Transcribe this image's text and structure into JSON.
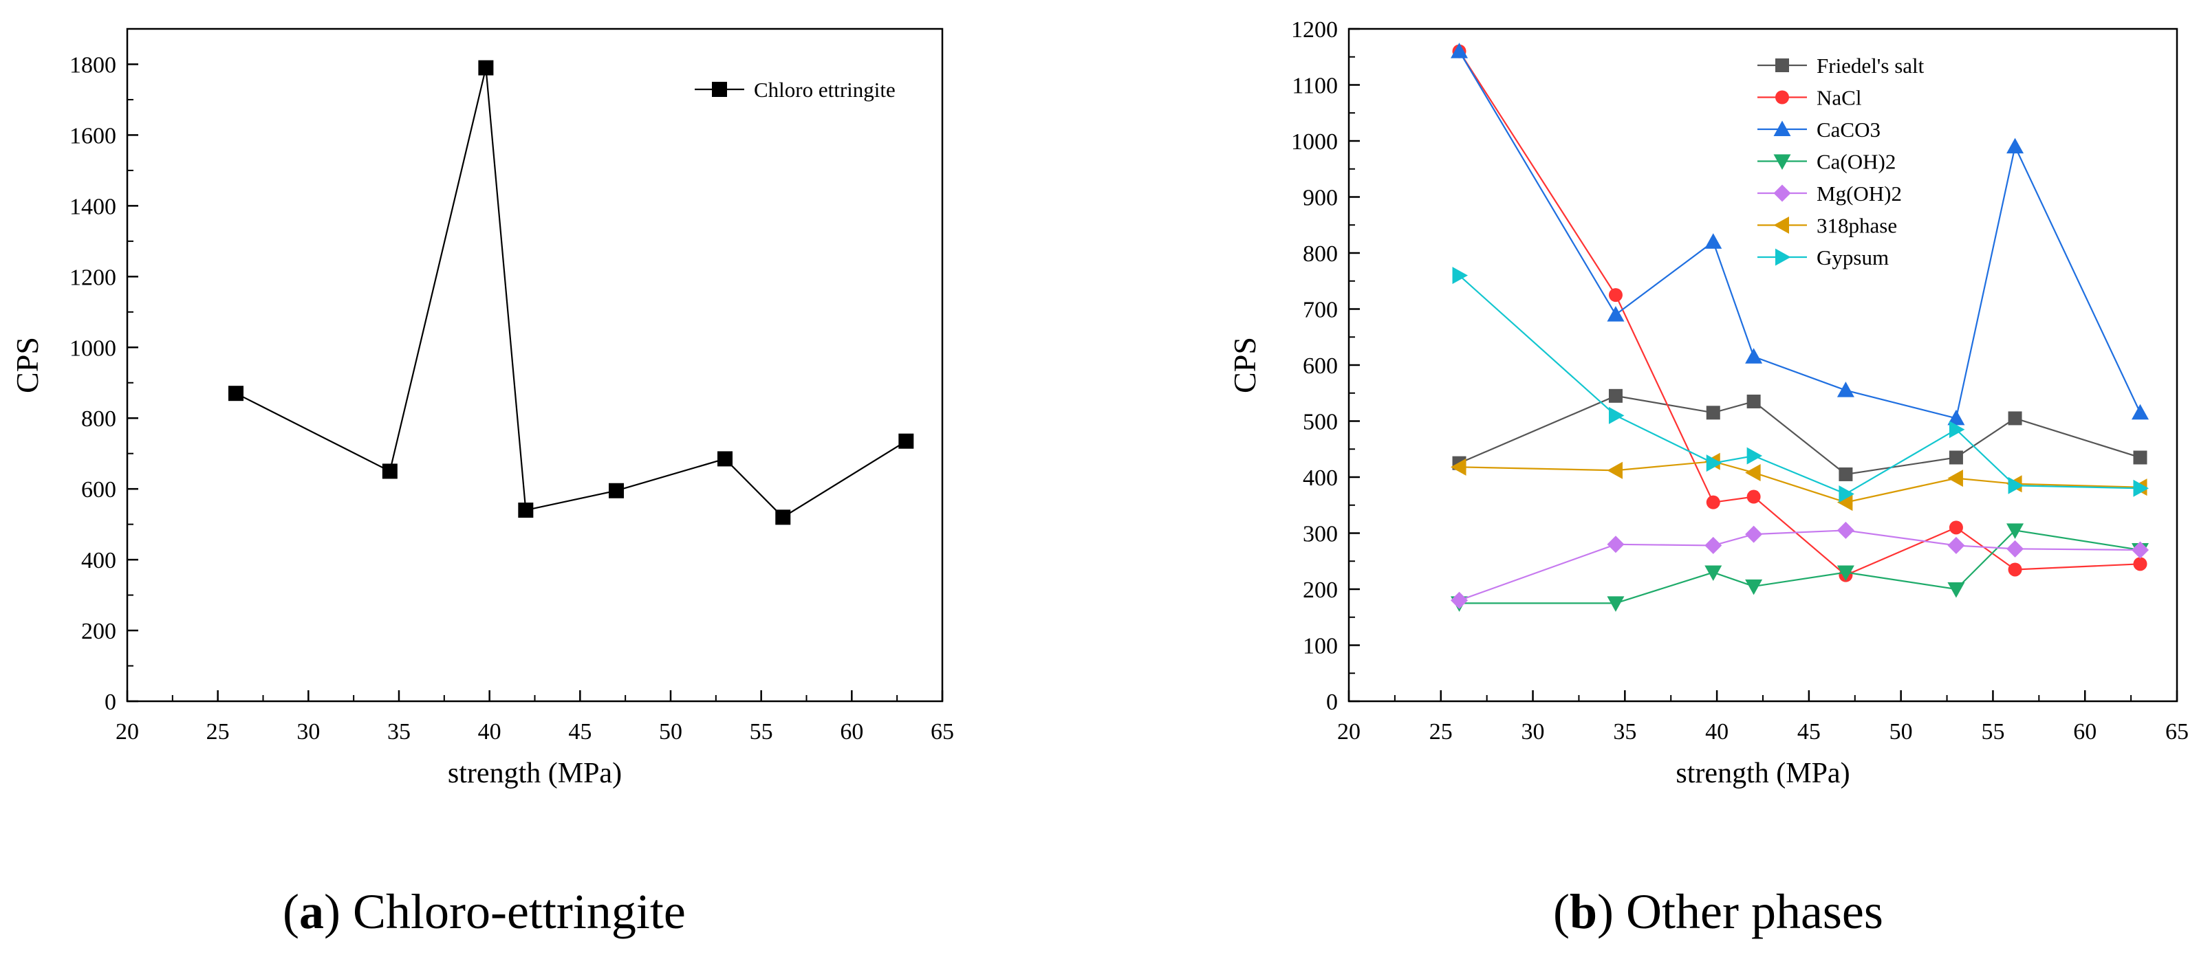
{
  "panels": [
    {
      "caption": {
        "letter": "a",
        "text": "Chloro-ettringite"
      },
      "chart_data": {
        "type": "line",
        "title": "",
        "xlabel": "strength (MPa)",
        "ylabel": "CPS",
        "xlim": [
          20,
          65
        ],
        "ylim": [
          0,
          1900
        ],
        "xticks": [
          20,
          25,
          30,
          35,
          40,
          45,
          50,
          55,
          60,
          65
        ],
        "yticks": [
          0,
          200,
          400,
          600,
          800,
          1000,
          1200,
          1400,
          1600,
          1800
        ],
        "legend": "top-right",
        "series": [
          {
            "name": "Chloro ettringite",
            "color": "#000000",
            "marker": "square",
            "x": [
              26,
              34.5,
              39.8,
              42,
              47,
              53,
              56.2,
              63
            ],
            "y": [
              870,
              650,
              1790,
              540,
              595,
              685,
              520,
              735
            ]
          }
        ]
      }
    },
    {
      "caption": {
        "letter": "b",
        "text": "Other phases"
      },
      "chart_data": {
        "type": "line",
        "title": "",
        "xlabel": "strength (MPa)",
        "ylabel": "CPS",
        "xlim": [
          20,
          65
        ],
        "ylim": [
          0,
          1200
        ],
        "xticks": [
          20,
          25,
          30,
          35,
          40,
          45,
          50,
          55,
          60,
          65
        ],
        "yticks": [
          0,
          100,
          200,
          300,
          400,
          500,
          600,
          700,
          800,
          900,
          1000,
          1100,
          1200
        ],
        "legend": "top-center",
        "series": [
          {
            "name": "Friedel's salt",
            "color": "#555555",
            "marker": "square",
            "x": [
              26,
              34.5,
              39.8,
              42,
              47,
              53,
              56.2,
              63
            ],
            "y": [
              425,
              545,
              515,
              535,
              405,
              435,
              505,
              435
            ]
          },
          {
            "name": "NaCl",
            "color": "#ff3333",
            "marker": "circle",
            "x": [
              26,
              34.5,
              39.8,
              42,
              47,
              53,
              56.2,
              63
            ],
            "y": [
              1160,
              725,
              355,
              365,
              225,
              310,
              235,
              245
            ]
          },
          {
            "name": "CaCO3",
            "color": "#1f6fe0",
            "marker": "triangle-up",
            "x": [
              26,
              34.5,
              39.8,
              42,
              47,
              53,
              56.2,
              63
            ],
            "y": [
              1160,
              690,
              820,
              615,
              555,
              505,
              990,
              515
            ]
          },
          {
            "name": "Ca(OH)2",
            "color": "#1eab6a",
            "marker": "triangle-down",
            "x": [
              26,
              34.5,
              39.8,
              42,
              47,
              53,
              56.2,
              63
            ],
            "y": [
              175,
              175,
              230,
              205,
              230,
              200,
              305,
              270
            ]
          },
          {
            "name": "Mg(OH)2",
            "color": "#c679ef",
            "marker": "diamond",
            "x": [
              26,
              34.5,
              39.8,
              42,
              47,
              53,
              56.2,
              63
            ],
            "y": [
              180,
              280,
              278,
              298,
              305,
              278,
              272,
              270
            ]
          },
          {
            "name": "318phase",
            "color": "#d99a00",
            "marker": "triangle-left",
            "x": [
              26,
              34.5,
              39.8,
              42,
              47,
              53,
              56.2,
              63
            ],
            "y": [
              418,
              412,
              428,
              408,
              355,
              398,
              388,
              382
            ]
          },
          {
            "name": "Gypsum",
            "color": "#12c6cf",
            "marker": "triangle-right",
            "x": [
              26,
              34.5,
              39.8,
              42,
              47,
              53,
              56.2,
              63
            ],
            "y": [
              760,
              510,
              425,
              438,
              370,
              485,
              385,
              380
            ]
          }
        ]
      }
    }
  ]
}
